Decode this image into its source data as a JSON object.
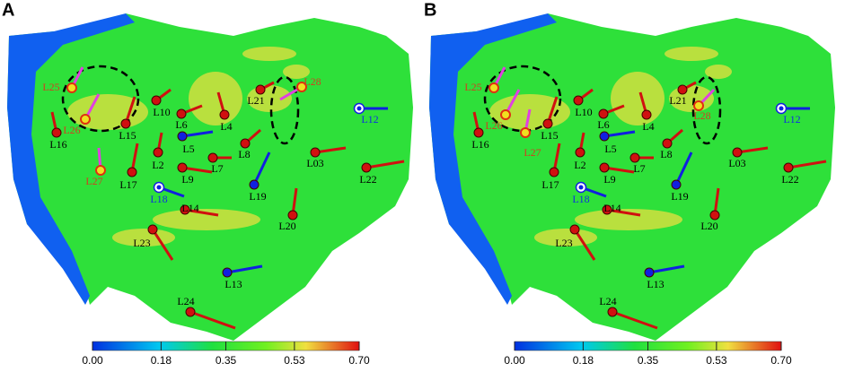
{
  "panels": [
    {
      "label": "A",
      "sites": [
        "L25",
        "L26",
        "L27",
        "L16",
        "L15",
        "L10",
        "L6",
        "L4",
        "L5",
        "L2",
        "L9",
        "L7",
        "L8",
        "L21",
        "L28",
        "L12",
        "L03",
        "L22",
        "L17",
        "L18",
        "L14",
        "L19",
        "L20",
        "L23",
        "L13",
        "L24"
      ]
    },
    {
      "label": "B",
      "sites": [
        "L25",
        "L26",
        "L27",
        "L16",
        "L15",
        "L10",
        "L6",
        "L4",
        "L5",
        "L2",
        "L9",
        "L7",
        "L8",
        "L21",
        "L28",
        "L12",
        "L03",
        "L22",
        "L17",
        "L18",
        "L14",
        "L19",
        "L20",
        "L23",
        "L13",
        "L24"
      ]
    }
  ],
  "colorbar": {
    "ticks": [
      {
        "value": 0,
        "label": "0.00"
      },
      0.18,
      0.35,
      0.53,
      {
        "value": 0.7,
        "label": "0.70"
      }
    ]
  }
}
